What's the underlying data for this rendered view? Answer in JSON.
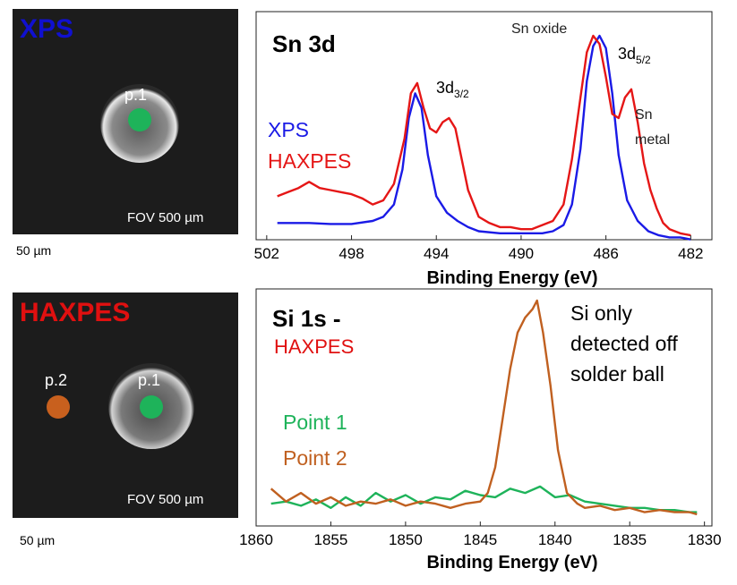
{
  "top_image": {
    "title": "XPS",
    "title_color": "#1010d0",
    "point_label": "p.1",
    "point_color": "#1eb35a",
    "fov": "FOV 500 µm",
    "scale": "50 µm"
  },
  "bottom_image": {
    "title": "HAXPES",
    "title_color": "#e01010",
    "point1_label": "p.1",
    "point1_color": "#1eb35a",
    "point2_label": "p.2",
    "point2_color": "#c8601e",
    "fov": "FOV 500 µm",
    "scale": "50 µm"
  },
  "chart_data": [
    {
      "type": "line",
      "title": "Sn 3d",
      "xlabel": "Binding Energy (eV)",
      "ylabel": "",
      "xlim": [
        502.5,
        481
      ],
      "x_reversed": true,
      "xticks": [
        "502",
        "498",
        "494",
        "490",
        "486",
        "482"
      ],
      "xtick_values": [
        502,
        498,
        494,
        490,
        486,
        482
      ],
      "legend": [
        {
          "name": "XPS",
          "color": "#1a1ae6"
        },
        {
          "name": "HAXPES",
          "color": "#e51616"
        }
      ],
      "annotations": {
        "peak1_base": "3d",
        "peak1_sub": "3/2",
        "peak2_base": "3d",
        "peak2_sub": "5/2",
        "oxide": "Sn oxide",
        "metal_line1": "Sn",
        "metal_line2": "metal"
      },
      "series": [
        {
          "name": "XPS",
          "color": "#1a1ae6",
          "x": [
            501.5,
            500,
            499,
            498,
            497,
            496.5,
            496,
            495.6,
            495.3,
            495,
            494.7,
            494.4,
            494,
            493.5,
            493,
            492.5,
            492,
            491,
            490,
            489,
            488.5,
            488,
            487.6,
            487.2,
            486.9,
            486.6,
            486.3,
            486,
            485.7,
            485.4,
            485,
            484.5,
            484,
            483.5,
            483,
            482.5,
            482
          ],
          "y": [
            0.09,
            0.09,
            0.085,
            0.085,
            0.1,
            0.12,
            0.18,
            0.35,
            0.6,
            0.72,
            0.65,
            0.42,
            0.22,
            0.14,
            0.1,
            0.07,
            0.05,
            0.04,
            0.04,
            0.04,
            0.05,
            0.08,
            0.18,
            0.45,
            0.78,
            0.95,
            1.0,
            0.94,
            0.72,
            0.42,
            0.2,
            0.1,
            0.05,
            0.03,
            0.02,
            0.02,
            0.01
          ]
        },
        {
          "name": "HAXPES",
          "color": "#e51616",
          "x": [
            501.5,
            501,
            500.5,
            500,
            499.5,
            499,
            498.5,
            498,
            497.5,
            497,
            496.5,
            496,
            495.5,
            495.2,
            494.9,
            494.6,
            494.3,
            494,
            493.7,
            493.4,
            493.1,
            492.8,
            492.5,
            492,
            491.5,
            491,
            490.5,
            490,
            489.5,
            489,
            488.5,
            488,
            487.6,
            487.2,
            486.9,
            486.6,
            486.3,
            486,
            485.7,
            485.4,
            485.1,
            484.8,
            484.5,
            484.2,
            483.9,
            483.6,
            483.3,
            483,
            482.5,
            482
          ],
          "y": [
            0.22,
            0.24,
            0.26,
            0.29,
            0.26,
            0.25,
            0.24,
            0.23,
            0.21,
            0.18,
            0.2,
            0.28,
            0.5,
            0.72,
            0.77,
            0.65,
            0.55,
            0.53,
            0.58,
            0.6,
            0.55,
            0.4,
            0.25,
            0.12,
            0.09,
            0.07,
            0.07,
            0.06,
            0.06,
            0.08,
            0.1,
            0.18,
            0.4,
            0.7,
            0.92,
            1.0,
            0.96,
            0.8,
            0.62,
            0.6,
            0.7,
            0.74,
            0.58,
            0.38,
            0.25,
            0.16,
            0.09,
            0.06,
            0.04,
            0.03
          ]
        }
      ]
    },
    {
      "type": "line",
      "title": "Si 1s -",
      "subtitle": "HAXPES",
      "xlabel": "Binding Energy (eV)",
      "ylabel": "",
      "xlim": [
        1860,
        1829.5
      ],
      "x_reversed": true,
      "xticks": [
        "1860",
        "1855",
        "1850",
        "1845",
        "1840",
        "1835",
        "1830"
      ],
      "xtick_values": [
        1860,
        1855,
        1850,
        1845,
        1840,
        1835,
        1830
      ],
      "legend": [
        {
          "name": "Point 1",
          "color": "#1eb35a"
        },
        {
          "name": "Point 2",
          "color": "#c06020"
        }
      ],
      "annotation_lines": [
        "Si only",
        "detected off",
        "solder ball"
      ],
      "series": [
        {
          "name": "Point 1",
          "color": "#1eb35a",
          "x": [
            1859,
            1858,
            1857,
            1856,
            1855,
            1854,
            1853,
            1852,
            1851,
            1850,
            1849,
            1848,
            1847,
            1846,
            1845,
            1844,
            1843,
            1842,
            1841,
            1840,
            1839,
            1838,
            1837,
            1836,
            1835,
            1834,
            1833,
            1832,
            1831,
            1830.5
          ],
          "y": [
            0.05,
            0.06,
            0.04,
            0.07,
            0.03,
            0.08,
            0.04,
            0.1,
            0.06,
            0.09,
            0.05,
            0.08,
            0.07,
            0.11,
            0.09,
            0.08,
            0.12,
            0.1,
            0.13,
            0.08,
            0.09,
            0.06,
            0.05,
            0.04,
            0.03,
            0.03,
            0.02,
            0.02,
            0.01,
            0.01
          ]
        },
        {
          "name": "Point 2",
          "color": "#c06020",
          "x": [
            1859,
            1858,
            1857,
            1856,
            1855,
            1854,
            1853,
            1852,
            1851,
            1850,
            1849,
            1848,
            1847,
            1846,
            1845,
            1844.5,
            1844,
            1843.5,
            1843,
            1842.5,
            1842,
            1841.5,
            1841.2,
            1840.8,
            1840.3,
            1839.8,
            1839.2,
            1838.5,
            1838,
            1837,
            1836,
            1835,
            1834,
            1833,
            1832,
            1831,
            1830.5
          ],
          "y": [
            0.12,
            0.06,
            0.1,
            0.05,
            0.08,
            0.04,
            0.06,
            0.05,
            0.07,
            0.04,
            0.06,
            0.05,
            0.03,
            0.05,
            0.06,
            0.1,
            0.22,
            0.45,
            0.68,
            0.85,
            0.92,
            0.96,
            1.0,
            0.85,
            0.6,
            0.3,
            0.1,
            0.05,
            0.03,
            0.04,
            0.02,
            0.03,
            0.01,
            0.02,
            0.01,
            0.01,
            0.0
          ]
        }
      ]
    }
  ]
}
